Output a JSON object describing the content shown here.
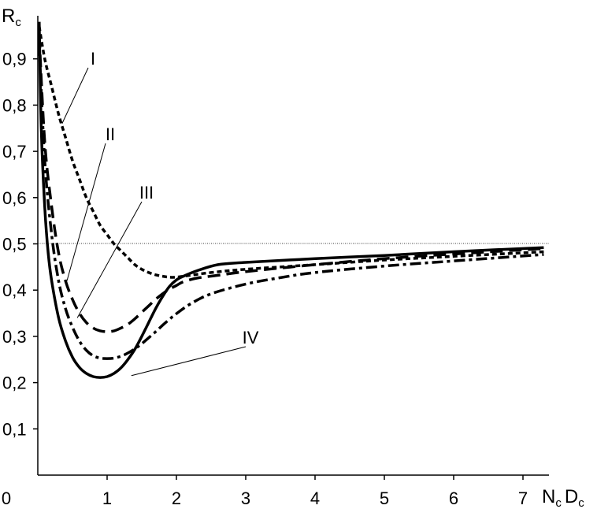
{
  "chart_data": {
    "type": "line",
    "title": "",
    "ylabel": {
      "main": "R",
      "sub": "c"
    },
    "xlabel": {
      "part1": "N",
      "sub1": "c",
      "part2": "D",
      "sub2": "c"
    },
    "xlim": [
      0,
      7.3
    ],
    "ylim": [
      0,
      1.0
    ],
    "grid": false,
    "origin_label": "0",
    "xticks": [
      {
        "value": 1,
        "label": "1"
      },
      {
        "value": 2,
        "label": "2"
      },
      {
        "value": 3,
        "label": "3"
      },
      {
        "value": 4,
        "label": "4"
      },
      {
        "value": 5,
        "label": "5"
      },
      {
        "value": 6,
        "label": "6"
      },
      {
        "value": 7,
        "label": "7"
      }
    ],
    "yticks": [
      {
        "value": 0.1,
        "label": "0,1"
      },
      {
        "value": 0.2,
        "label": "0,2"
      },
      {
        "value": 0.3,
        "label": "0,3"
      },
      {
        "value": 0.4,
        "label": "0,4"
      },
      {
        "value": 0.5,
        "label": "0,5"
      },
      {
        "value": 0.6,
        "label": "0,6"
      },
      {
        "value": 0.7,
        "label": "0,7"
      },
      {
        "value": 0.8,
        "label": "0,8"
      },
      {
        "value": 0.9,
        "label": "0,9"
      }
    ],
    "reference_line": {
      "y": 0.5,
      "style": "dotted"
    },
    "series": [
      {
        "label": "I",
        "style": "short-dash",
        "x": [
          0.02,
          0.1,
          0.2,
          0.3,
          0.4,
          0.5,
          0.6,
          0.7,
          0.8,
          0.9,
          1.0,
          1.1,
          1.2,
          1.3,
          1.4,
          1.5,
          1.6,
          1.7,
          1.8,
          1.9,
          2.0,
          2.1,
          2.2,
          2.5,
          3.0,
          4.0,
          5.0,
          6.0,
          7.3
        ],
        "y": [
          0.97,
          0.9,
          0.84,
          0.78,
          0.73,
          0.68,
          0.64,
          0.6,
          0.57,
          0.54,
          0.52,
          0.5,
          0.485,
          0.47,
          0.455,
          0.445,
          0.438,
          0.433,
          0.43,
          0.428,
          0.428,
          0.43,
          0.432,
          0.438,
          0.445,
          0.455,
          0.465,
          0.473,
          0.483
        ],
        "label_x": 0.35,
        "label_y": 0.76
      },
      {
        "label": "II",
        "style": "long-dash",
        "x": [
          0.02,
          0.1,
          0.2,
          0.3,
          0.4,
          0.5,
          0.6,
          0.7,
          0.8,
          0.9,
          1.0,
          1.1,
          1.2,
          1.3,
          1.4,
          1.5,
          1.6,
          1.7,
          1.8,
          1.9,
          2.0,
          2.1,
          2.3,
          2.6,
          3.0,
          4.0,
          5.0,
          6.0,
          7.3
        ],
        "y": [
          0.95,
          0.72,
          0.58,
          0.48,
          0.42,
          0.38,
          0.35,
          0.33,
          0.318,
          0.312,
          0.31,
          0.312,
          0.318,
          0.326,
          0.338,
          0.352,
          0.366,
          0.38,
          0.392,
          0.402,
          0.41,
          0.418,
          0.426,
          0.432,
          0.44,
          0.455,
          0.468,
          0.478,
          0.49
        ],
        "label_x": 0.42,
        "label_y": 0.42
      },
      {
        "label": "III",
        "style": "dash-dot",
        "x": [
          0.02,
          0.1,
          0.2,
          0.3,
          0.4,
          0.5,
          0.6,
          0.7,
          0.8,
          0.9,
          1.0,
          1.1,
          1.2,
          1.3,
          1.4,
          1.5,
          1.6,
          1.7,
          1.8,
          1.9,
          2.0,
          2.2,
          2.5,
          3.0,
          3.5,
          4.0,
          5.0,
          6.0,
          7.3
        ],
        "y": [
          0.93,
          0.68,
          0.52,
          0.42,
          0.36,
          0.32,
          0.29,
          0.27,
          0.258,
          0.253,
          0.252,
          0.253,
          0.257,
          0.264,
          0.273,
          0.284,
          0.297,
          0.31,
          0.324,
          0.337,
          0.349,
          0.37,
          0.392,
          0.413,
          0.427,
          0.438,
          0.452,
          0.463,
          0.477
        ],
        "label_x": 0.57,
        "label_y": 0.34
      },
      {
        "label": "IV",
        "style": "solid",
        "x": [
          0.02,
          0.05,
          0.1,
          0.15,
          0.2,
          0.3,
          0.4,
          0.5,
          0.6,
          0.7,
          0.8,
          0.9,
          1.0,
          1.1,
          1.2,
          1.3,
          1.4,
          1.5,
          1.6,
          1.7,
          1.8,
          1.9,
          2.0,
          2.1,
          2.3,
          2.6,
          3.0,
          4.0,
          5.0,
          6.0,
          7.3
        ],
        "y": [
          0.98,
          0.75,
          0.58,
          0.48,
          0.42,
          0.34,
          0.29,
          0.255,
          0.233,
          0.22,
          0.213,
          0.211,
          0.213,
          0.22,
          0.232,
          0.25,
          0.272,
          0.3,
          0.33,
          0.36,
          0.386,
          0.408,
          0.422,
          0.43,
          0.442,
          0.455,
          0.46,
          0.468,
          0.475,
          0.483,
          0.492
        ],
        "label_x": 1.35,
        "label_y": 0.215
      }
    ]
  }
}
